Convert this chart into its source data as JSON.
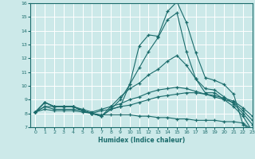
{
  "xlabel": "Humidex (Indice chaleur)",
  "xlim": [
    -0.5,
    23
  ],
  "ylim": [
    7,
    16
  ],
  "yticks": [
    7,
    8,
    9,
    10,
    11,
    12,
    13,
    14,
    15,
    16
  ],
  "xticks": [
    0,
    1,
    2,
    3,
    4,
    5,
    6,
    7,
    8,
    9,
    10,
    11,
    12,
    13,
    14,
    15,
    16,
    17,
    18,
    19,
    20,
    21,
    22,
    23
  ],
  "bg_color": "#cce9e9",
  "grid_color": "#ffffff",
  "line_color": "#1a6b6b",
  "lines": [
    {
      "x": [
        0,
        1,
        2,
        3,
        4,
        5,
        6,
        7,
        8,
        9,
        10,
        11,
        12,
        13,
        14,
        15,
        16,
        17,
        18,
        19,
        20,
        21,
        22,
        23
      ],
      "y": [
        8.1,
        8.8,
        8.5,
        8.5,
        8.5,
        8.2,
        8.0,
        7.8,
        8.3,
        8.5,
        10.1,
        12.9,
        13.7,
        13.6,
        15.4,
        16.1,
        14.6,
        12.4,
        10.6,
        10.4,
        10.1,
        9.4,
        7.2,
        6.7
      ]
    },
    {
      "x": [
        0,
        1,
        2,
        3,
        4,
        5,
        6,
        7,
        8,
        9,
        10,
        11,
        12,
        13,
        14,
        15,
        16,
        17,
        18,
        19,
        20,
        21,
        22,
        23
      ],
      "y": [
        8.1,
        8.8,
        8.5,
        8.5,
        8.5,
        8.2,
        8.0,
        7.8,
        8.3,
        9.0,
        10.1,
        11.3,
        12.5,
        13.5,
        14.8,
        15.3,
        12.5,
        10.5,
        9.5,
        9.5,
        9.0,
        8.5,
        7.8,
        6.7
      ]
    },
    {
      "x": [
        0,
        1,
        2,
        3,
        4,
        5,
        6,
        7,
        8,
        9,
        10,
        11,
        12,
        13,
        14,
        15,
        16,
        17,
        18,
        19,
        20,
        21,
        22,
        23
      ],
      "y": [
        8.1,
        8.8,
        8.5,
        8.5,
        8.5,
        8.2,
        8.0,
        7.8,
        8.5,
        9.2,
        9.8,
        10.2,
        10.8,
        11.2,
        11.8,
        12.2,
        11.5,
        10.5,
        9.8,
        9.7,
        9.2,
        8.7,
        8.0,
        7.2
      ]
    },
    {
      "x": [
        0,
        1,
        2,
        3,
        4,
        5,
        6,
        7,
        8,
        9,
        10,
        11,
        12,
        13,
        14,
        15,
        16,
        17,
        18,
        19,
        20,
        21,
        22,
        23
      ],
      "y": [
        8.1,
        8.5,
        8.5,
        8.5,
        8.5,
        8.3,
        8.1,
        8.3,
        8.5,
        8.7,
        9.0,
        9.2,
        9.5,
        9.7,
        9.8,
        9.9,
        9.8,
        9.6,
        9.4,
        9.2,
        9.0,
        8.8,
        8.2,
        7.5
      ]
    },
    {
      "x": [
        0,
        1,
        2,
        3,
        4,
        5,
        6,
        7,
        8,
        9,
        10,
        11,
        12,
        13,
        14,
        15,
        16,
        17,
        18,
        19,
        20,
        21,
        22,
        23
      ],
      "y": [
        8.1,
        8.5,
        8.3,
        8.3,
        8.3,
        8.2,
        8.0,
        8.2,
        8.3,
        8.5,
        8.6,
        8.8,
        9.0,
        9.2,
        9.3,
        9.4,
        9.5,
        9.5,
        9.4,
        9.3,
        9.1,
        8.9,
        8.4,
        7.8
      ]
    },
    {
      "x": [
        0,
        1,
        2,
        3,
        4,
        5,
        6,
        7,
        8,
        9,
        10,
        11,
        12,
        13,
        14,
        15,
        16,
        17,
        18,
        19,
        20,
        21,
        22,
        23
      ],
      "y": [
        8.1,
        8.3,
        8.2,
        8.2,
        8.2,
        8.1,
        8.0,
        7.9,
        7.9,
        7.9,
        7.9,
        7.8,
        7.8,
        7.7,
        7.7,
        7.6,
        7.6,
        7.5,
        7.5,
        7.5,
        7.4,
        7.4,
        7.3,
        6.8
      ]
    }
  ]
}
